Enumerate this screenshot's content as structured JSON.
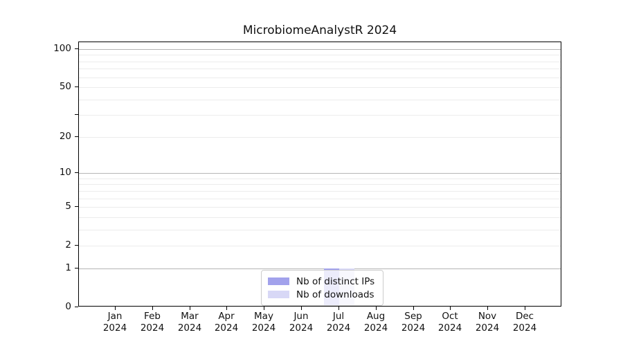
{
  "chart_data": {
    "type": "bar",
    "title": "MicrobiomeAnalystR 2024",
    "categories": [
      {
        "month": "Jan",
        "year": "2024"
      },
      {
        "month": "Feb",
        "year": "2024"
      },
      {
        "month": "Mar",
        "year": "2024"
      },
      {
        "month": "Apr",
        "year": "2024"
      },
      {
        "month": "May",
        "year": "2024"
      },
      {
        "month": "Jun",
        "year": "2024"
      },
      {
        "month": "Jul",
        "year": "2024"
      },
      {
        "month": "Aug",
        "year": "2024"
      },
      {
        "month": "Sep",
        "year": "2024"
      },
      {
        "month": "Oct",
        "year": "2024"
      },
      {
        "month": "Nov",
        "year": "2024"
      },
      {
        "month": "Dec",
        "year": "2024"
      }
    ],
    "series": [
      {
        "name": "Nb of distinct IPs",
        "color": "#a2a2ec",
        "values": [
          0,
          0,
          0,
          0,
          0,
          0,
          1,
          0,
          0,
          0,
          0,
          0
        ]
      },
      {
        "name": "Nb of downloads",
        "color": "#d8d8f6",
        "values": [
          0,
          0,
          0,
          0,
          0,
          0,
          1,
          0,
          0,
          0,
          0,
          0
        ]
      }
    ],
    "yscale": "log1p",
    "ylim": [
      0,
      100
    ],
    "yticks": [
      {
        "value": 100,
        "label": "100"
      },
      {
        "value": 50,
        "label": "50"
      },
      {
        "value": 30,
        "label": ""
      },
      {
        "value": 20,
        "label": "20"
      },
      {
        "value": 10,
        "label": "10"
      },
      {
        "value": 5,
        "label": "5"
      },
      {
        "value": 2,
        "label": "2"
      },
      {
        "value": 1,
        "label": "1"
      },
      {
        "value": 0,
        "label": "0"
      }
    ],
    "grid_major": [
      1,
      10,
      100
    ],
    "grid_minor": [
      2,
      3,
      4,
      5,
      6,
      7,
      8,
      9,
      20,
      30,
      40,
      50,
      60,
      70,
      80,
      90
    ],
    "legend_position": "bottom-center",
    "xlabel": "",
    "ylabel": ""
  },
  "colors": {
    "grid_major": "#b5b5b5",
    "grid_minor": "#ececec",
    "axis": "#000000",
    "legend_border": "#cccccc",
    "background": "#ffffff"
  }
}
